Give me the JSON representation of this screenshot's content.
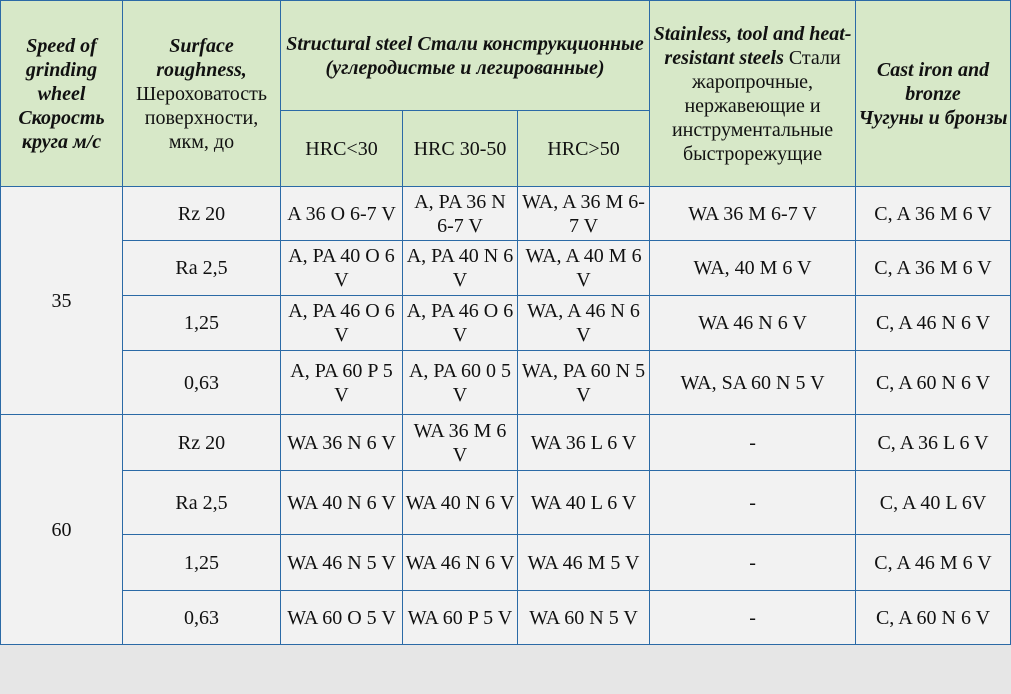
{
  "header": {
    "speed_en": "Speed of grinding wheel",
    "speed_ru": "Скорость круга м/с",
    "rough_en": "Surface roughness,",
    "rough_ru": "Шероховатость поверхности, мкм, до",
    "structural_en": "Structural steel",
    "structural_ru": "Стали конструкционные (углеродистые и легированные)",
    "stainless_en": "Stainless, tool and heat-resistant steels",
    "stainless_ru": "Стали жаропрочные, нержавеющие и инструментальные быстрорежущие",
    "cast_en": "Cast iron and bronze",
    "cast_ru": "Чугуны и бронзы",
    "hrc1": "HRC<30",
    "hrc2": "HRC 30-50",
    "hrc3": "HRC>50"
  },
  "groups": [
    {
      "speed": "35",
      "rows": [
        {
          "rough": "Rz 20",
          "hrc1": "A 36 O 6-7 V",
          "hrc2": "A, PA 36 N 6-7 V",
          "hrc3": "WA, A 36 M 6-7 V",
          "stainless": "WA 36 M 6-7 V",
          "cast": "C, A 36 M 6 V"
        },
        {
          "rough": "Ra 2,5",
          "hrc1": "A, PA 40 O 6 V",
          "hrc2": "A, PA 40 N 6 V",
          "hrc3": "WA, A 40 M 6 V",
          "stainless": "WA, 40 M 6 V",
          "cast": "C, A 36 M 6 V"
        },
        {
          "rough": "1,25",
          "hrc1": "A, PA 46 O 6 V",
          "hrc2": "A, PA 46 O 6 V",
          "hrc3": "WA, A 46 N 6 V",
          "stainless": "WA 46 N 6 V",
          "cast": "C, A 46 N 6 V"
        },
        {
          "rough": "0,63",
          "hrc1": "A, PA 60 P 5 V",
          "hrc2": "A, PA 60 0 5 V",
          "hrc3": "WA, PA 60 N 5 V",
          "stainless": "WA, SA 60 N 5 V",
          "cast": "C, A 60 N 6 V"
        }
      ]
    },
    {
      "speed": "60",
      "rows": [
        {
          "rough": "Rz 20",
          "hrc1": "WA 36 N 6 V",
          "hrc2": "WA 36 M 6 V",
          "hrc3": "WA 36 L 6 V",
          "stainless": "-",
          "cast": "C, A 36 L 6 V"
        },
        {
          "rough": "Ra 2,5",
          "hrc1": "WA 40 N 6 V",
          "hrc2": "WA 40 N 6 V",
          "hrc3": "WA 40 L 6 V",
          "stainless": "-",
          "cast": "C, A 40 L 6V"
        },
        {
          "rough": "1,25",
          "hrc1": "WA 46 N 5 V",
          "hrc2": "WA 46 N 6 V",
          "hrc3": "WA 46 M 5 V",
          "stainless": "-",
          "cast": "C, A 46 M 6 V"
        },
        {
          "rough": "0,63",
          "hrc1": "WA 60 O 5 V",
          "hrc2": "WA 60 P 5 V",
          "hrc3": "WA 60 N 5 V",
          "stainless": "-",
          "cast": "C, A 60 N 6 V"
        }
      ]
    }
  ],
  "colors": {
    "header_bg": "#d7e8c8",
    "body_bg": "#f2f2f2",
    "border": "#2b6aa6",
    "page_bg": "#e6e6e6"
  }
}
